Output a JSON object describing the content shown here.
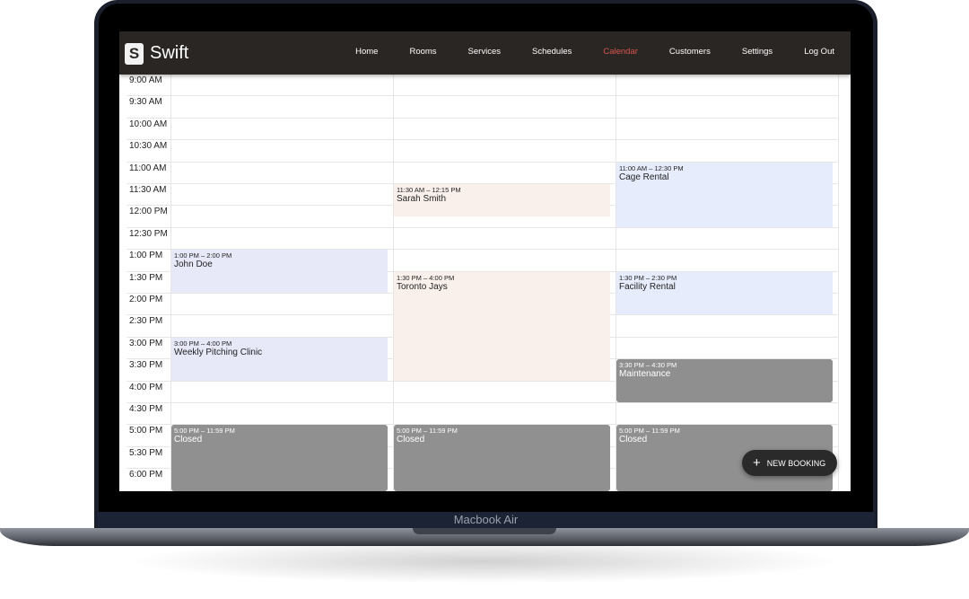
{
  "device_label": "Macbook Air",
  "app": {
    "logo_letter": "S",
    "brand": "Swift"
  },
  "nav": [
    {
      "label": "Home"
    },
    {
      "label": "Rooms"
    },
    {
      "label": "Services"
    },
    {
      "label": "Schedules"
    },
    {
      "label": "Calendar",
      "active": true
    },
    {
      "label": "Customers"
    },
    {
      "label": "Settings"
    },
    {
      "label": "Log Out"
    }
  ],
  "accent": "#d9544f",
  "times": [
    "9:00 AM",
    "9:30 AM",
    "10:00 AM",
    "10:30 AM",
    "11:00 AM",
    "11:30 AM",
    "12:00 PM",
    "12:30 PM",
    "1:00 PM",
    "1:30 PM",
    "2:00 PM",
    "2:30 PM",
    "3:00 PM",
    "3:30 PM",
    "4:00 PM",
    "4:30 PM",
    "5:00 PM",
    "5:30 PM",
    "6:00 PM"
  ],
  "events": [
    {
      "column": 0,
      "start": "1:00 PM",
      "end": "2:00 PM",
      "range": "1:00 PM – 2:00 PM",
      "name": "John Doe",
      "color": "#e8e9f8"
    },
    {
      "column": 0,
      "start": "3:00 PM",
      "end": "4:00 PM",
      "range": "3:00 PM – 4:00 PM",
      "name": "Weekly Pitching Clinic",
      "color": "#e8e9f8"
    },
    {
      "column": 0,
      "start": "5:00 PM",
      "end": "11:59 PM",
      "range": "5:00 PM – 11:59 PM",
      "name": "Closed",
      "color": "#909090",
      "dark": true
    },
    {
      "column": 1,
      "start": "11:30 AM",
      "end": "12:15 PM",
      "range": "11:30 AM – 12:15 PM",
      "name": "Sarah Smith",
      "color": "#f9f0eb"
    },
    {
      "column": 1,
      "start": "1:30 PM",
      "end": "4:00 PM",
      "range": "1:30 PM – 4:00 PM",
      "name": "Toronto Jays",
      "color": "#f9f0eb"
    },
    {
      "column": 1,
      "start": "5:00 PM",
      "end": "11:59 PM",
      "range": "5:00 PM – 11:59 PM",
      "name": "Closed",
      "color": "#909090",
      "dark": true
    },
    {
      "column": 2,
      "start": "11:00 AM",
      "end": "12:30 PM",
      "range": "11:00 AM – 12:30 PM",
      "name": "Cage Rental",
      "color": "#e6ecfb"
    },
    {
      "column": 2,
      "start": "1:30 PM",
      "end": "2:30 PM",
      "range": "1:30 PM – 2:30 PM",
      "name": "Facility Rental",
      "color": "#e6ecfb"
    },
    {
      "column": 2,
      "start": "3:30 PM",
      "end": "4:30 PM",
      "range": "3:30 PM – 4:30 PM",
      "name": "Maintenance",
      "color": "#8f8f8f",
      "dark": true
    },
    {
      "column": 2,
      "start": "5:00 PM",
      "end": "11:59 PM",
      "range": "5:00 PM – 11:59 PM",
      "name": "Closed",
      "color": "#909090",
      "dark": true
    }
  ],
  "new_booking": {
    "icon": "plus-icon",
    "label": "NEW BOOKING"
  }
}
